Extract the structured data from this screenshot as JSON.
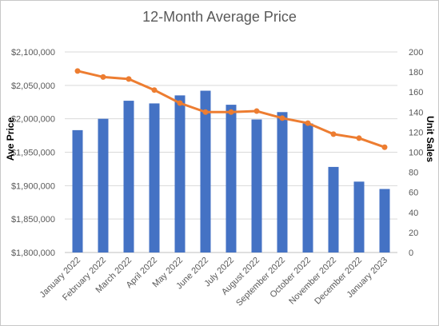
{
  "chart_data": {
    "type": "bar",
    "title": "12-Month Average Price",
    "categories": [
      "January 2022",
      "February 2022",
      "March 2022",
      "April 2022",
      "May 2022",
      "June 2022",
      "July 2022",
      "August 2022",
      "September 2022",
      "October 2022",
      "November 2022",
      "December 2022",
      "January 2023"
    ],
    "y_left": {
      "label": "Ave Price",
      "min": 1800000,
      "max": 2100000,
      "step": 50000,
      "tick_labels": [
        "$1,800,000",
        "$1,850,000",
        "$1,900,000",
        "$1,950,000",
        "$2,000,000",
        "$2,050,000",
        "$2,100,000"
      ]
    },
    "y_right": {
      "label": "Unit Sales",
      "min": 0,
      "max": 200,
      "step": 20,
      "tick_labels": [
        "0",
        "20",
        "40",
        "60",
        "80",
        "100",
        "120",
        "140",
        "160",
        "180",
        "200"
      ]
    },
    "series": [
      {
        "type": "bar",
        "axis": "left",
        "color": "#4472C4",
        "values": [
          1983000,
          2000000,
          2027000,
          2023000,
          2035000,
          2042000,
          2021000,
          1999000,
          2010000,
          1993000,
          1928000,
          1906000,
          1895000
        ]
      },
      {
        "type": "line",
        "axis": "right",
        "color": "#ED7D31",
        "values": [
          181,
          175,
          173,
          162,
          149,
          140,
          140,
          141,
          134,
          129,
          118,
          114,
          105
        ]
      }
    ],
    "grid": true,
    "legend": "none"
  }
}
